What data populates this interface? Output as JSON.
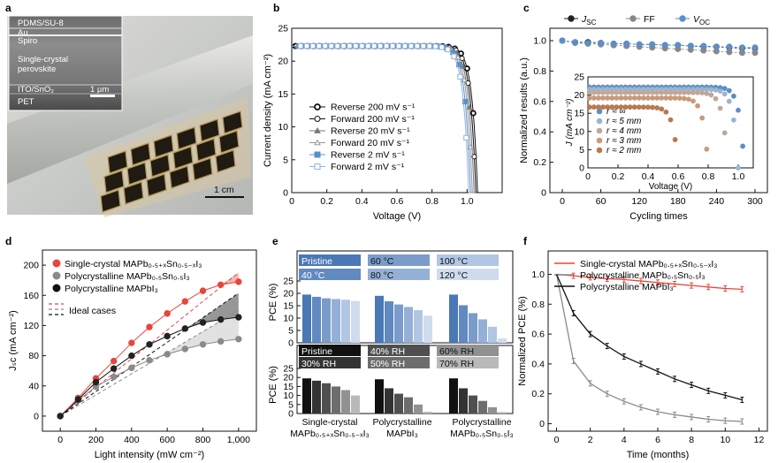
{
  "panels": {
    "a": {
      "label": "a",
      "layers": [
        "PDMS/SU-8",
        "Au",
        "Spiro",
        "Single-crystal",
        "perovskite",
        "ITO/SnO₂",
        "PET"
      ],
      "inset_scale": "1 µm",
      "scale": "1 cm"
    },
    "b": {
      "label": "b"
    },
    "c": {
      "label": "c"
    },
    "d": {
      "label": "d"
    },
    "e": {
      "label": "e"
    },
    "f": {
      "label": "f"
    }
  },
  "chart_data": [
    {
      "panel": "b",
      "type": "line",
      "xlabel": "Voltage (V)",
      "ylabel": "Current density (mA cm⁻²)",
      "xlim": [
        0,
        1.2
      ],
      "ylim": [
        0,
        25
      ],
      "xticks": [
        "0",
        "0.2",
        "0.4",
        "0.6",
        "0.8",
        "1.0"
      ],
      "yticks": [
        "0",
        "5",
        "10",
        "15",
        "20",
        "25"
      ],
      "jsc": 22.3,
      "series": [
        {
          "name": "Reverse 200 mV s⁻¹",
          "voc": 1.06,
          "color": "#111111",
          "marker": "circle-open-thick"
        },
        {
          "name": "Forward 200 mV s⁻¹",
          "voc": 1.05,
          "color": "#111111",
          "marker": "circle-open"
        },
        {
          "name": "Reverse 20 mV s⁻¹",
          "voc": 1.04,
          "color": "#777777",
          "marker": "triangle"
        },
        {
          "name": "Forward 20 mV s⁻¹",
          "voc": 1.03,
          "color": "#9a9a9a",
          "marker": "triangle-open"
        },
        {
          "name": "Reverse 2 mV s⁻¹",
          "voc": 1.02,
          "color": "#5b8fc9",
          "marker": "square"
        },
        {
          "name": "Forward 2 mV s⁻¹",
          "voc": 1.01,
          "color": "#8fb3dd",
          "marker": "square-open"
        }
      ]
    },
    {
      "panel": "c",
      "type": "scatter",
      "xlabel": "Cycling times",
      "ylabel": "Normalized results (a.u.)",
      "xlim": [
        0,
        300
      ],
      "ylim": [
        0,
        1.0
      ],
      "xticks": [
        "0",
        "60",
        "120",
        "180",
        "240",
        "300"
      ],
      "yticks": [
        "0",
        "0.2",
        "0.4",
        "0.6",
        "0.8",
        "1.0"
      ],
      "x": [
        0,
        20,
        40,
        60,
        80,
        100,
        120,
        140,
        160,
        180,
        200,
        220,
        240,
        260,
        280,
        300
      ],
      "series": [
        {
          "name": "J",
          "sub": "SC",
          "color": "#222222",
          "values": [
            1.0,
            0.99,
            0.99,
            0.985,
            0.98,
            0.98,
            0.975,
            0.975,
            0.97,
            0.97,
            0.965,
            0.96,
            0.96,
            0.955,
            0.95,
            0.95
          ]
        },
        {
          "name": "FF",
          "color": "#888888",
          "values": [
            1.0,
            0.985,
            0.98,
            0.975,
            0.97,
            0.965,
            0.96,
            0.955,
            0.95,
            0.945,
            0.94,
            0.935,
            0.93,
            0.925,
            0.92,
            0.92
          ]
        },
        {
          "name": "V",
          "sub": "OC",
          "color": "#5b8fc9",
          "values": [
            1.0,
            0.99,
            0.985,
            0.985,
            0.98,
            0.98,
            0.975,
            0.975,
            0.97,
            0.97,
            0.965,
            0.965,
            0.96,
            0.96,
            0.955,
            0.955
          ]
        }
      ],
      "inset": {
        "xlabel": "Voltage (V)",
        "ylabel": "J (mA cm⁻²)",
        "xlim": [
          0,
          1.1
        ],
        "ylim": [
          0,
          25
        ],
        "xticks": [
          "0",
          "0.2",
          "0.4",
          "0.6",
          "0.8",
          "1.0"
        ],
        "yticks": [
          "0",
          "5",
          "10",
          "15",
          "20",
          "25"
        ],
        "curves": [
          {
            "name": "r ≈ ∞",
            "jsc": 22.2,
            "voc": 1.04,
            "color": "#5b8fc9"
          },
          {
            "name": "r ≈ 5 mm",
            "jsc": 21.6,
            "voc": 1.0,
            "color": "#9bb4cf"
          },
          {
            "name": "r ≈ 4 mm",
            "jsc": 20.7,
            "voc": 0.93,
            "color": "#bfa79a"
          },
          {
            "name": "r ≈ 3 mm",
            "jsc": 19.2,
            "voc": 0.8,
            "color": "#c89a7a"
          },
          {
            "name": "r ≈ 2 mm",
            "jsc": 16.7,
            "voc": 0.6,
            "color": "#b9794f"
          }
        ]
      }
    },
    {
      "panel": "d",
      "type": "line",
      "xlabel": "Light intensity (mW cm⁻²)",
      "ylabel": "Jₛᴄ (mA cm⁻²)",
      "xlim": [
        0,
        1000
      ],
      "ylim": [
        0,
        200
      ],
      "xticks": [
        "0",
        "200",
        "400",
        "600",
        "800",
        "1,000"
      ],
      "yticks": [
        "0",
        "40",
        "80",
        "120",
        "160",
        "200"
      ],
      "x": [
        0,
        25,
        50,
        100,
        200,
        300,
        400,
        500,
        600,
        700,
        800,
        900,
        1000
      ],
      "series": [
        {
          "name": "Single-crystal MAPb₀.₅₊ₓSn₀.₅₋ₓI₃",
          "color": "#e8453c",
          "values": [
            0,
            6,
            12,
            24,
            50,
            73,
            97,
            118,
            136,
            152,
            166,
            174,
            178
          ],
          "ideal_end": 190
        },
        {
          "name": "Polycrystalline MAPb₀.₅Sn₀.₅I₃",
          "color": "#8a8a8a",
          "values": [
            0,
            5,
            10,
            21,
            39,
            52,
            64,
            74,
            82,
            89,
            95,
            99,
            102
          ],
          "ideal_end": 140
        },
        {
          "name": "Polycrystalline MAPbI₃",
          "color": "#111111",
          "values": [
            0,
            5,
            10,
            22,
            45,
            63,
            80,
            95,
            106,
            116,
            124,
            128,
            131
          ],
          "ideal_end": 163
        }
      ],
      "ideal_label": "Ideal cases"
    },
    {
      "panel": "e",
      "type": "bar",
      "ylabel": "PCE (%)",
      "ylim": [
        0,
        25
      ],
      "yticks": [
        "0",
        "5",
        "10",
        "15",
        "20",
        "25"
      ],
      "categories": [
        "Single-crystal\nMAPb₀.₅₊ₓSn₀.₅₋ₓI₃",
        "Polycrystalline\nMAPbI₃",
        "Polycrystalline\nMAPb₀.₅Sn₀.₅I₃"
      ],
      "top": {
        "legend": [
          "Pristine",
          "40 °C",
          "60 °C",
          "80 °C",
          "100 °C",
          "120 °C"
        ],
        "colors": [
          "#4a78b5",
          "#6289c0",
          "#7b9bcb",
          "#95b0d7",
          "#b1c6e3",
          "#cfdcee"
        ],
        "values": [
          [
            19.5,
            18.6,
            18.0,
            17.7,
            17.4,
            16.9
          ],
          [
            19.0,
            16.8,
            15.5,
            14.5,
            13.2,
            11.0
          ],
          [
            19.5,
            15.2,
            12.0,
            9.5,
            6.5,
            1.8
          ]
        ]
      },
      "bottom": {
        "legend": [
          "Pristine",
          "30% RH",
          "40% RH",
          "50% RH",
          "60% RH",
          "70% RH"
        ],
        "colors": [
          "#111111",
          "#333333",
          "#4f4f4f",
          "#6d6d6d",
          "#919191",
          "#b9b9b9"
        ],
        "values": [
          [
            19.5,
            18.2,
            16.8,
            15.0,
            13.0,
            10.0
          ],
          [
            19.0,
            14.0,
            11.0,
            9.0,
            5.0,
            1.0
          ],
          [
            19.5,
            14.0,
            10.0,
            7.0,
            3.5,
            0.8
          ]
        ]
      }
    },
    {
      "panel": "f",
      "type": "line",
      "xlabel": "Time (months)",
      "ylabel": "Normalized PCE (%)",
      "xlim": [
        0,
        12
      ],
      "ylim": [
        0,
        1.0
      ],
      "xticks": [
        "0",
        "2",
        "4",
        "6",
        "8",
        "10",
        "12"
      ],
      "yticks": [
        "0",
        "0.2",
        "0.4",
        "0.6",
        "0.8",
        "1.0"
      ],
      "x": [
        0,
        1,
        2,
        3,
        4,
        5,
        6,
        7,
        8,
        9,
        10,
        11
      ],
      "series": [
        {
          "name": "Single-crystal MAPb₀.₅₊ₓSn₀.₅₋ₓI₃",
          "color": "#e8453c",
          "values": [
            1.0,
            0.99,
            0.98,
            0.97,
            0.965,
            0.955,
            0.945,
            0.935,
            0.925,
            0.915,
            0.905,
            0.9
          ]
        },
        {
          "name": "Polycrystalline MAPb₀.₅Sn₀.₅I₃",
          "color": "#8a8a8a",
          "values": [
            1.0,
            0.42,
            0.27,
            0.2,
            0.15,
            0.11,
            0.08,
            0.06,
            0.045,
            0.03,
            0.02,
            0.015
          ]
        },
        {
          "name": "Polycrystalline MAPbI₃",
          "color": "#111111",
          "values": [
            1.0,
            0.74,
            0.6,
            0.52,
            0.45,
            0.4,
            0.35,
            0.3,
            0.26,
            0.22,
            0.19,
            0.16
          ]
        }
      ]
    }
  ]
}
